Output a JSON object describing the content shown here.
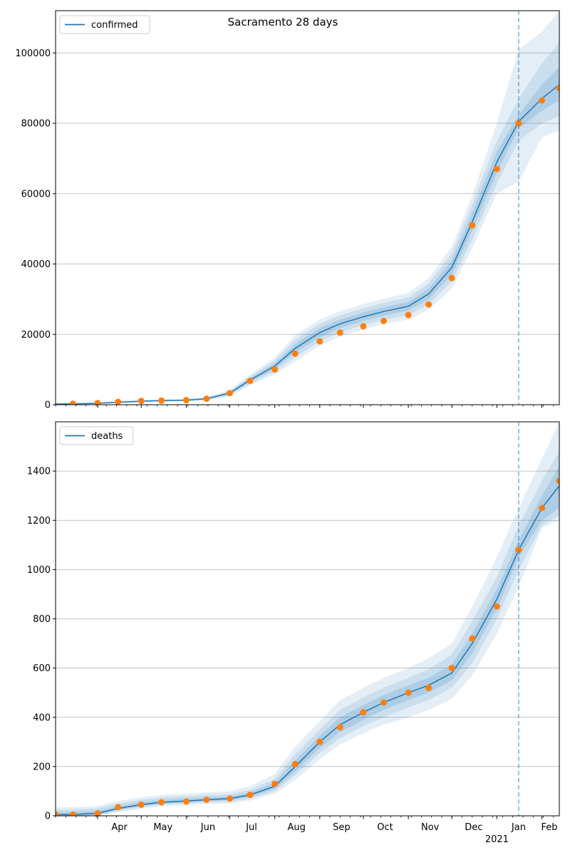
{
  "title": "Sacramento 28 days",
  "colors": {
    "model_line": "#1f77b4",
    "observed_points": "#ff7f0e",
    "band_fill": "#1f77b4",
    "grid": "#b0b0b0",
    "forecast_marker": "#1f77b4"
  },
  "chart_data": [
    {
      "type": "line",
      "panel": "top",
      "title": "Sacramento 28 days",
      "xlabel": "",
      "ylabel": "",
      "legend": [
        "confirmed"
      ],
      "legend_position": "top-left",
      "grid": "horizontal",
      "ylim": [
        0,
        112000
      ],
      "yticks": [
        0,
        20000,
        40000,
        60000,
        80000,
        100000
      ],
      "x_tick_labels": [],
      "forecast_start": "2021-01-16",
      "series": [
        {
          "name": "confirmed",
          "kind": "model",
          "x": [
            "2020-03-01",
            "2020-03-15",
            "2020-04-01",
            "2020-04-15",
            "2020-05-01",
            "2020-05-15",
            "2020-06-01",
            "2020-06-15",
            "2020-07-01",
            "2020-07-15",
            "2020-08-01",
            "2020-08-15",
            "2020-09-01",
            "2020-09-15",
            "2020-10-01",
            "2020-10-15",
            "2020-11-01",
            "2020-11-15",
            "2020-12-01",
            "2020-12-15",
            "2021-01-01",
            "2021-01-16",
            "2021-02-01",
            "2021-02-13"
          ],
          "y": [
            200,
            250,
            400,
            700,
            1000,
            1150,
            1300,
            1700,
            3300,
            7000,
            11000,
            16000,
            20500,
            23000,
            25000,
            26500,
            28000,
            31500,
            39000,
            52000,
            69000,
            80500,
            87000,
            91000
          ],
          "bands": [
            {
              "level": "inner",
              "lower": [
                150,
                200,
                330,
                600,
                900,
                1050,
                1200,
                1550,
                3000,
                6500,
                10200,
                14800,
                19200,
                21800,
                23800,
                25300,
                26800,
                30000,
                37000,
                49500,
                66000,
                78500,
                83500,
                86500
              ],
              "upper": [
                250,
                300,
                470,
                800,
                1100,
                1250,
                1400,
                1850,
                3600,
                7500,
                11800,
                17200,
                21800,
                24200,
                26200,
                27700,
                29200,
                33000,
                41000,
                54500,
                72000,
                82500,
                91000,
                96000
              ]
            },
            {
              "level": "middle",
              "lower": [
                100,
                150,
                260,
                500,
                800,
                950,
                1100,
                1400,
                2700,
                6000,
                9400,
                13500,
                18000,
                20600,
                22600,
                24100,
                25500,
                28500,
                35000,
                47000,
                63000,
                75000,
                80000,
                82000
              ],
              "upper": [
                300,
                350,
                540,
                900,
                1200,
                1350,
                1500,
                2000,
                3900,
                8000,
                12600,
                18500,
                23000,
                25400,
                27400,
                28900,
                30500,
                34500,
                43000,
                57000,
                75000,
                87000,
                97000,
                103000
              ]
            },
            {
              "level": "outer",
              "lower": [
                50,
                100,
                190,
                400,
                700,
                850,
                1000,
                1250,
                2400,
                5500,
                8600,
                12300,
                16800,
                19400,
                21400,
                22900,
                24200,
                27000,
                33000,
                44500,
                60000,
                63500,
                76000,
                78000
              ],
              "upper": [
                350,
                400,
                610,
                1000,
                1300,
                1450,
                1600,
                2150,
                4200,
                8500,
                13400,
                19800,
                24200,
                26600,
                28600,
                30100,
                31800,
                36000,
                45000,
                59500,
                80000,
                101000,
                106000,
                112000
              ]
            }
          ]
        },
        {
          "name": "observed",
          "kind": "points",
          "x": [
            "2020-03-01",
            "2020-03-15",
            "2020-04-01",
            "2020-04-15",
            "2020-05-01",
            "2020-05-15",
            "2020-06-01",
            "2020-06-15",
            "2020-07-01",
            "2020-07-15",
            "2020-08-01",
            "2020-08-15",
            "2020-09-01",
            "2020-09-15",
            "2020-10-01",
            "2020-10-15",
            "2020-11-01",
            "2020-11-15",
            "2020-12-01",
            "2020-12-15",
            "2021-01-01",
            "2021-01-16",
            "2021-02-01",
            "2021-02-13"
          ],
          "y": [
            200,
            250,
            450,
            800,
            1050,
            1150,
            1300,
            1700,
            3300,
            6800,
            10000,
            14500,
            18000,
            20500,
            22300,
            23800,
            25500,
            28500,
            36000,
            51000,
            67000,
            80000,
            86500,
            90000
          ]
        }
      ]
    },
    {
      "type": "line",
      "panel": "bottom",
      "title": "",
      "xlabel": "",
      "ylabel": "",
      "legend": [
        "deaths"
      ],
      "legend_position": "top-left",
      "grid": "horizontal",
      "ylim": [
        0,
        1600
      ],
      "yticks": [
        0,
        200,
        400,
        600,
        800,
        1000,
        1200,
        1400
      ],
      "x_tick_labels": [
        "Apr",
        "May",
        "Jun",
        "Jul",
        "Aug",
        "Sep",
        "Oct",
        "Nov",
        "Dec",
        "Jan",
        "Feb"
      ],
      "x_tick_dates": [
        "2020-04-01",
        "2020-05-01",
        "2020-06-01",
        "2020-07-01",
        "2020-08-01",
        "2020-09-01",
        "2020-10-01",
        "2020-11-01",
        "2020-12-01",
        "2021-01-01",
        "2021-02-01"
      ],
      "x_year_label": "2021",
      "xlim": [
        "2020-03-03",
        "2021-02-13"
      ],
      "forecast_start": "2021-01-16",
      "series": [
        {
          "name": "deaths",
          "kind": "model",
          "x": [
            "2020-03-03",
            "2020-03-15",
            "2020-04-01",
            "2020-04-15",
            "2020-05-01",
            "2020-05-15",
            "2020-06-01",
            "2020-06-15",
            "2020-07-01",
            "2020-07-15",
            "2020-08-01",
            "2020-08-15",
            "2020-09-01",
            "2020-09-15",
            "2020-10-01",
            "2020-10-15",
            "2020-11-01",
            "2020-11-15",
            "2020-12-01",
            "2020-12-15",
            "2021-01-01",
            "2021-01-16",
            "2021-02-01",
            "2021-02-13"
          ],
          "y": [
            5,
            5,
            10,
            30,
            45,
            55,
            60,
            65,
            70,
            85,
            120,
            200,
            300,
            370,
            420,
            460,
            500,
            530,
            580,
            700,
            880,
            1080,
            1250,
            1340
          ],
          "bands": [
            {
              "level": "inner",
              "lower": [
                0,
                0,
                5,
                25,
                40,
                50,
                55,
                60,
                63,
                77,
                110,
                180,
                275,
                340,
                390,
                430,
                470,
                500,
                550,
                660,
                840,
                1050,
                1200,
                1250
              ],
              "upper": [
                15,
                15,
                20,
                40,
                55,
                65,
                70,
                75,
                78,
                95,
                135,
                225,
                325,
                400,
                450,
                490,
                530,
                560,
                615,
                740,
                920,
                1120,
                1300,
                1420
              ]
            },
            {
              "level": "middle",
              "lower": [
                0,
                0,
                0,
                20,
                35,
                45,
                50,
                55,
                57,
                70,
                100,
                165,
                255,
                315,
                365,
                400,
                440,
                470,
                520,
                620,
                800,
                1000,
                1180,
                1220
              ],
              "upper": [
                25,
                25,
                30,
                50,
                65,
                75,
                80,
                85,
                88,
                105,
                150,
                250,
                350,
                430,
                480,
                520,
                560,
                595,
                655,
                790,
                970,
                1180,
                1360,
                1480
              ]
            },
            {
              "level": "outer",
              "lower": [
                0,
                0,
                0,
                15,
                28,
                38,
                43,
                48,
                50,
                62,
                90,
                145,
                230,
                290,
                335,
                370,
                400,
                430,
                475,
                570,
                740,
                930,
                1170,
                1200
              ],
              "upper": [
                35,
                35,
                40,
                60,
                75,
                85,
                90,
                95,
                100,
                120,
                170,
                280,
                385,
                470,
                520,
                560,
                600,
                640,
                700,
                850,
                1050,
                1250,
                1450,
                1600
              ]
            }
          ]
        },
        {
          "name": "observed",
          "kind": "points",
          "x": [
            "2020-03-03",
            "2020-03-15",
            "2020-04-01",
            "2020-04-15",
            "2020-05-01",
            "2020-05-15",
            "2020-06-01",
            "2020-06-15",
            "2020-07-01",
            "2020-07-15",
            "2020-08-01",
            "2020-08-15",
            "2020-09-01",
            "2020-09-15",
            "2020-10-01",
            "2020-10-15",
            "2020-11-01",
            "2020-11-15",
            "2020-12-01",
            "2020-12-15",
            "2021-01-01",
            "2021-01-16",
            "2021-02-01",
            "2021-02-13"
          ],
          "y": [
            5,
            5,
            10,
            35,
            45,
            55,
            58,
            65,
            70,
            85,
            130,
            210,
            300,
            360,
            420,
            460,
            500,
            520,
            600,
            720,
            850,
            1080,
            1250,
            1360
          ]
        }
      ]
    }
  ]
}
